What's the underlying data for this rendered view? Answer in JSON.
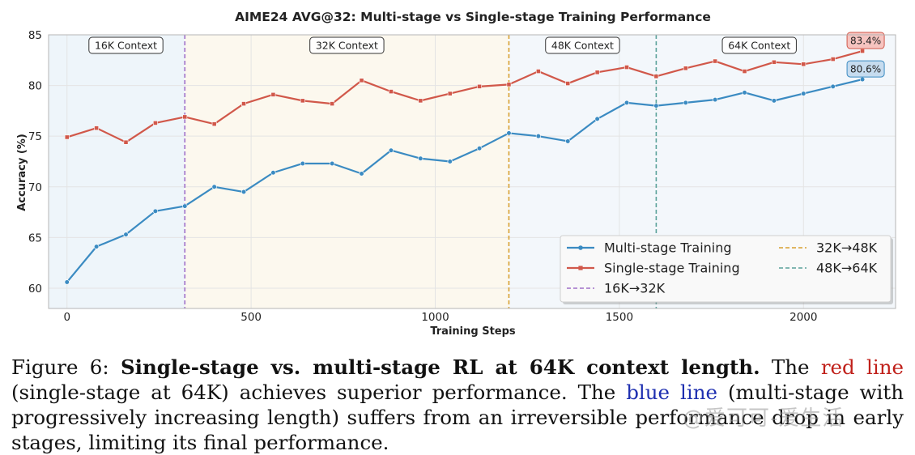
{
  "chart_data": {
    "type": "line",
    "title": "AIME24 AVG@32: Multi-stage vs Single-stage Training Performance",
    "xlabel": "Training Steps",
    "ylabel": "Accuracy (%)",
    "xlim": [
      -50,
      2250
    ],
    "ylim": [
      58,
      85
    ],
    "xticks": [
      0,
      500,
      1000,
      1500,
      2000
    ],
    "yticks": [
      60,
      65,
      70,
      75,
      80,
      85
    ],
    "grid": true,
    "legend_position": "lower-right",
    "x": [
      0,
      80,
      160,
      240,
      320,
      400,
      480,
      560,
      640,
      720,
      800,
      880,
      960,
      1040,
      1120,
      1200,
      1280,
      1360,
      1440,
      1520,
      1600,
      1680,
      1760,
      1840,
      1920,
      2000,
      2080,
      2160
    ],
    "series": [
      {
        "name": "Multi-stage Training",
        "color": "#3b8bc2",
        "marker": "circle",
        "values": [
          60.6,
          64.1,
          65.3,
          67.6,
          68.1,
          70.0,
          69.5,
          71.4,
          72.3,
          72.3,
          71.3,
          73.6,
          72.8,
          72.5,
          73.8,
          75.3,
          75.0,
          74.5,
          76.7,
          78.3,
          78.0,
          78.3,
          78.6,
          79.3,
          78.5,
          79.2,
          79.9,
          80.6
        ]
      },
      {
        "name": "Single-stage Training",
        "color": "#d1584a",
        "marker": "square",
        "values": [
          74.9,
          75.8,
          74.4,
          76.3,
          76.9,
          76.2,
          78.2,
          79.1,
          78.5,
          78.2,
          80.5,
          79.4,
          78.5,
          79.2,
          79.9,
          80.1,
          81.4,
          80.2,
          81.3,
          81.8,
          80.9,
          81.7,
          82.4,
          81.4,
          82.3,
          82.1,
          82.6,
          83.4
        ]
      }
    ],
    "stage_regions": [
      {
        "from": -50,
        "to": 320,
        "label": "16K Context",
        "color": "#eef5fa"
      },
      {
        "from": 320,
        "to": 1200,
        "label": "32K Context",
        "color": "#fcf8ee"
      },
      {
        "from": 1200,
        "to": 2250,
        "label": "48K Context",
        "color": "#f3f7fb"
      }
    ],
    "stage_labels": [
      {
        "x": 160,
        "label": "16K Context"
      },
      {
        "x": 760,
        "label": "32K Context"
      },
      {
        "x": 1400,
        "label": "48K Context"
      },
      {
        "x": 1880,
        "label": "64K Context"
      }
    ],
    "transitions": [
      {
        "x": 320,
        "name": "16K→32K",
        "color": "#a070c8"
      },
      {
        "x": 1200,
        "name": "32K→48K",
        "color": "#d8a030"
      },
      {
        "x": 1600,
        "name": "48K→64K",
        "color": "#5aa19a"
      }
    ],
    "end_annotations": [
      {
        "series": 1,
        "text": "83.4%",
        "bg": "#f6c4c0",
        "border": "#d1584a"
      },
      {
        "series": 0,
        "text": "80.6%",
        "bg": "#c6dcef",
        "border": "#3b8bc2"
      }
    ]
  },
  "caption": {
    "prefix": "Figure 6: ",
    "bold": "Single-stage vs. multi-stage RL at 64K context length.",
    "t1": " The ",
    "red": "red line",
    "t2": " (single-stage at 64K) achieves superior performance. The ",
    "blue": "blue line",
    "t3": " (multi-stage with progressively increasing length) suffers from an irreversible performance drop in early stages, limiting its final performance."
  },
  "watermark": "@爱可可-爱生活"
}
